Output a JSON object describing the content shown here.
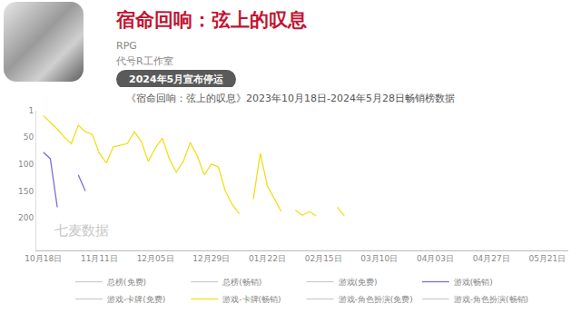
{
  "header": {
    "title": "宿命回响：弦上的叹息",
    "genre": "RPG",
    "studio": "代号R工作室",
    "badge": "2024年5月宣布停运"
  },
  "chart_data": {
    "type": "line",
    "title": "《宿命回响：弦上的叹息》2023年10月18日-2024年5月28日畅销榜数据",
    "categories": [
      "10月18日",
      null,
      null,
      null,
      null,
      null,
      null,
      null,
      "11月11日",
      null,
      null,
      null,
      null,
      null,
      null,
      null,
      "12月05日",
      null,
      null,
      null,
      null,
      null,
      null,
      null,
      "12月29日",
      null,
      null,
      null,
      null,
      null,
      null,
      null,
      "01月22日",
      null,
      null,
      null,
      null,
      null,
      null,
      null,
      "02月15日",
      null,
      null,
      null,
      null,
      null,
      null,
      null,
      "03月10日",
      null,
      null,
      null,
      null,
      null,
      null,
      null,
      "04月03日",
      null,
      null,
      null,
      null,
      null,
      null,
      null,
      "04月27日",
      null,
      null,
      null,
      null,
      null,
      null,
      null,
      "05月21日",
      null,
      null
    ],
    "series": [
      {
        "name": "总榜(免费)",
        "color": "#cccccc",
        "values": [
          null,
          null,
          null,
          null,
          null,
          null,
          null,
          null,
          null,
          null,
          null,
          null,
          null,
          null,
          null,
          null,
          null,
          null,
          null,
          null,
          null,
          null,
          null,
          null,
          null,
          null,
          null,
          null,
          null,
          null,
          null,
          null,
          null,
          null,
          null,
          null,
          null,
          null,
          null,
          null,
          null,
          null,
          null,
          null,
          null,
          null,
          null,
          null,
          null,
          null,
          null,
          null,
          null,
          null,
          null,
          null,
          null,
          null,
          null,
          null,
          null,
          null,
          null,
          null,
          null,
          null,
          null,
          null,
          null,
          null,
          null,
          null,
          null,
          null,
          null
        ]
      },
      {
        "name": "总榜(畅销)",
        "color": "#cccccc",
        "values": [
          null,
          null,
          null,
          null,
          null,
          null,
          null,
          null,
          null,
          null,
          null,
          null,
          null,
          null,
          null,
          null,
          null,
          null,
          null,
          null,
          null,
          null,
          null,
          null,
          null,
          null,
          null,
          null,
          null,
          null,
          null,
          null,
          null,
          null,
          null,
          null,
          null,
          null,
          null,
          null,
          null,
          null,
          null,
          null,
          null,
          null,
          null,
          null,
          null,
          null,
          null,
          null,
          null,
          null,
          null,
          null,
          null,
          null,
          null,
          null,
          null,
          null,
          null,
          null,
          null,
          null,
          null,
          null,
          null,
          null,
          null,
          null,
          null,
          null,
          null
        ]
      },
      {
        "name": "游戏(免费)",
        "color": "#cccccc",
        "values": [
          null,
          null,
          null,
          null,
          null,
          null,
          null,
          null,
          null,
          null,
          null,
          null,
          null,
          null,
          null,
          null,
          null,
          null,
          null,
          null,
          null,
          null,
          null,
          null,
          null,
          null,
          null,
          null,
          null,
          null,
          null,
          null,
          null,
          null,
          null,
          null,
          null,
          null,
          null,
          null,
          null,
          null,
          null,
          null,
          null,
          null,
          null,
          null,
          null,
          null,
          null,
          null,
          null,
          null,
          null,
          null,
          null,
          null,
          null,
          null,
          null,
          null,
          null,
          null,
          null,
          null,
          null,
          null,
          null,
          null,
          null,
          null,
          null,
          null,
          null
        ]
      },
      {
        "name": "游戏(畅销)",
        "color": "#7b6fd6",
        "values": [
          78,
          90,
          180,
          null,
          null,
          120,
          150,
          null,
          null,
          null,
          null,
          null,
          null,
          null,
          null,
          null,
          null,
          null,
          null,
          null,
          null,
          null,
          null,
          null,
          null,
          null,
          null,
          null,
          null,
          null,
          null,
          null,
          null,
          null,
          null,
          null,
          null,
          null,
          null,
          null,
          null,
          null,
          null,
          null,
          null,
          null,
          null,
          null,
          null,
          null,
          null,
          null,
          null,
          null,
          null,
          null,
          null,
          null,
          null,
          null,
          null,
          null,
          null,
          null,
          null,
          null,
          null,
          null,
          null,
          null,
          null,
          null,
          null,
          null,
          null
        ]
      },
      {
        "name": "游戏-卡牌(免费)",
        "color": "#cccccc",
        "values": [
          null,
          null,
          null,
          null,
          null,
          null,
          null,
          null,
          null,
          null,
          null,
          null,
          null,
          null,
          null,
          null,
          null,
          null,
          null,
          null,
          null,
          null,
          null,
          null,
          null,
          null,
          null,
          null,
          null,
          null,
          null,
          null,
          null,
          null,
          null,
          null,
          null,
          null,
          null,
          null,
          null,
          null,
          null,
          null,
          null,
          null,
          null,
          null,
          null,
          null,
          null,
          null,
          null,
          null,
          null,
          null,
          null,
          null,
          null,
          null,
          null,
          null,
          null,
          null,
          null,
          null,
          null,
          null,
          null,
          null,
          null,
          null,
          null,
          null,
          null
        ]
      },
      {
        "name": "游戏-卡牌(畅销)",
        "color": "#f2de1b",
        "values": [
          10,
          23,
          35,
          50,
          62,
          28,
          40,
          45,
          80,
          98,
          68,
          65,
          62,
          40,
          58,
          95,
          70,
          52,
          90,
          115,
          95,
          60,
          85,
          120,
          100,
          105,
          150,
          175,
          192,
          null,
          165,
          80,
          140,
          165,
          188,
          null,
          185,
          195,
          188,
          196,
          null,
          null,
          180,
          196,
          null,
          null,
          null,
          null,
          null,
          null,
          null,
          null,
          null,
          null,
          null,
          null,
          null,
          null,
          null,
          null,
          null,
          null,
          null,
          null,
          null,
          null,
          null,
          null,
          null,
          null,
          null,
          null,
          null,
          null,
          null
        ]
      },
      {
        "name": "游戏-角色扮演(免费)",
        "color": "#cccccc",
        "values": [
          null,
          null,
          null,
          null,
          null,
          null,
          null,
          null,
          null,
          null,
          null,
          null,
          null,
          null,
          null,
          null,
          null,
          null,
          null,
          null,
          null,
          null,
          null,
          null,
          null,
          null,
          null,
          null,
          null,
          null,
          null,
          null,
          null,
          null,
          null,
          null,
          null,
          null,
          null,
          null,
          null,
          null,
          null,
          null,
          null,
          null,
          null,
          null,
          null,
          null,
          null,
          null,
          null,
          null,
          null,
          null,
          null,
          null,
          null,
          null,
          null,
          null,
          null,
          null,
          null,
          null,
          null,
          null,
          null,
          null,
          null,
          null,
          null,
          null,
          null
        ]
      },
      {
        "name": "游戏-角色扮演(畅销)",
        "color": "#cccccc",
        "values": [
          null,
          null,
          null,
          null,
          null,
          null,
          null,
          null,
          null,
          null,
          null,
          null,
          null,
          null,
          null,
          null,
          null,
          null,
          null,
          null,
          null,
          null,
          null,
          null,
          null,
          null,
          null,
          null,
          null,
          null,
          null,
          null,
          null,
          null,
          null,
          null,
          null,
          null,
          null,
          null,
          null,
          null,
          null,
          null,
          null,
          null,
          null,
          null,
          null,
          null,
          null,
          null,
          null,
          null,
          null,
          null,
          null,
          null,
          null,
          null,
          null,
          null,
          null,
          null,
          null,
          null,
          null,
          null,
          null,
          null,
          null,
          null,
          null,
          null,
          null
        ]
      }
    ],
    "ylim": [
      260,
      1
    ],
    "yticks": [
      1,
      50,
      100,
      150,
      200
    ],
    "grid": false,
    "legend": "bottom",
    "annotations": [
      {
        "text": "七麦数据"
      }
    ]
  }
}
